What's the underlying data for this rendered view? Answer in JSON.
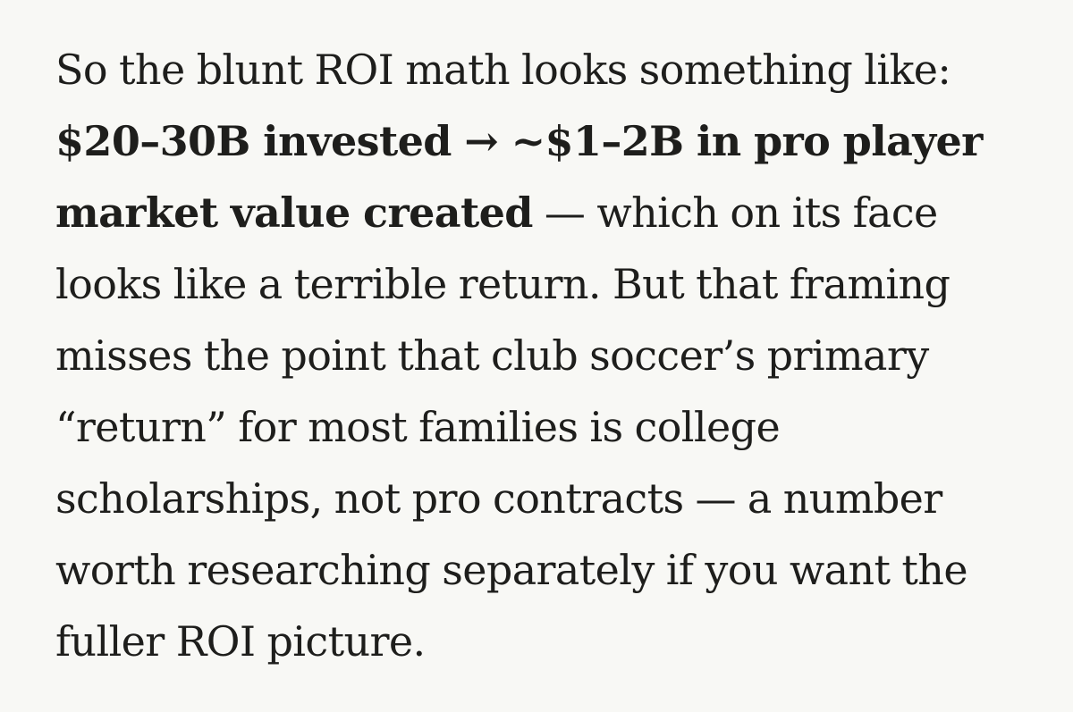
{
  "article": {
    "segments": [
      {
        "text": "So the blunt ROI math looks something like:",
        "bold": false
      },
      {
        "text": "$20–30B invested → ~$1–2B in pro player market value created",
        "bold": true
      },
      {
        "text": "— which on its face looks like a terrible return. But that framing misses the point that club soccer’s primary “return” for most families is college scholarships, not pro contracts — a number worth researching separately if you want the fuller ROI picture.",
        "bold": false
      }
    ]
  }
}
